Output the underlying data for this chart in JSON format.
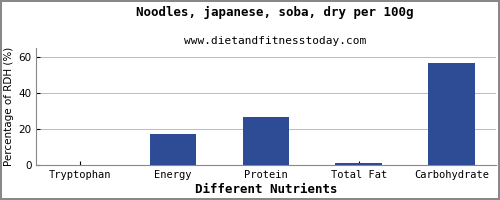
{
  "title": "Noodles, japanese, soba, dry per 100g",
  "subtitle": "www.dietandfitnesstoday.com",
  "xlabel": "Different Nutrients",
  "ylabel": "Percentage of RDH (%)",
  "categories": [
    "Tryptophan",
    "Energy",
    "Protein",
    "Total Fat",
    "Carbohydrate"
  ],
  "values": [
    0.3,
    17.5,
    26.5,
    1.2,
    57.0
  ],
  "bar_color": "#2e4c96",
  "ylim": [
    0,
    65
  ],
  "yticks": [
    0,
    20,
    40,
    60
  ],
  "background_color": "#ffffff",
  "grid_color": "#bbbbbb",
  "title_fontsize": 9,
  "subtitle_fontsize": 8,
  "xlabel_fontsize": 9,
  "ylabel_fontsize": 7.5,
  "tick_fontsize": 7.5,
  "border_color": "#888888"
}
